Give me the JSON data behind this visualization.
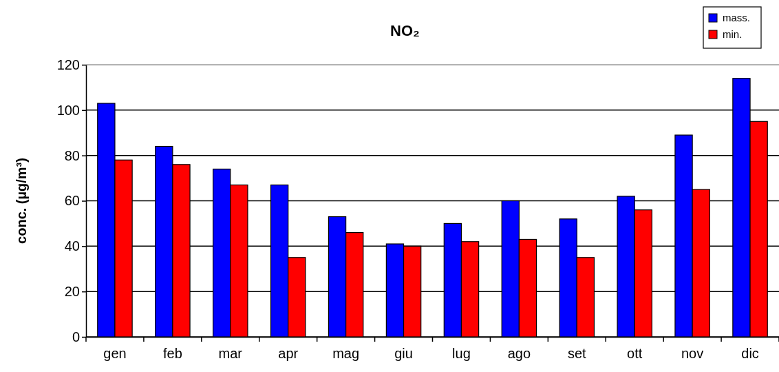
{
  "chart_data": {
    "type": "bar",
    "title": "NO₂",
    "ylabel": "conc. (µg/m³)",
    "categories": [
      "gen",
      "feb",
      "mar",
      "apr",
      "mag",
      "giu",
      "lug",
      "ago",
      "set",
      "ott",
      "nov",
      "dic"
    ],
    "series": [
      {
        "name": "mass.",
        "color": "#0000ff",
        "values": [
          103,
          84,
          74,
          67,
          53,
          41,
          50,
          60,
          52,
          62,
          89,
          114
        ]
      },
      {
        "name": "min.",
        "color": "#ff0000",
        "values": [
          78,
          76,
          67,
          35,
          46,
          40,
          42,
          43,
          35,
          56,
          65,
          95
        ]
      }
    ],
    "ylim": [
      0,
      120
    ],
    "yticks": [
      0,
      20,
      40,
      60,
      80,
      100,
      120
    ],
    "grid": "y",
    "legend": "top right"
  }
}
